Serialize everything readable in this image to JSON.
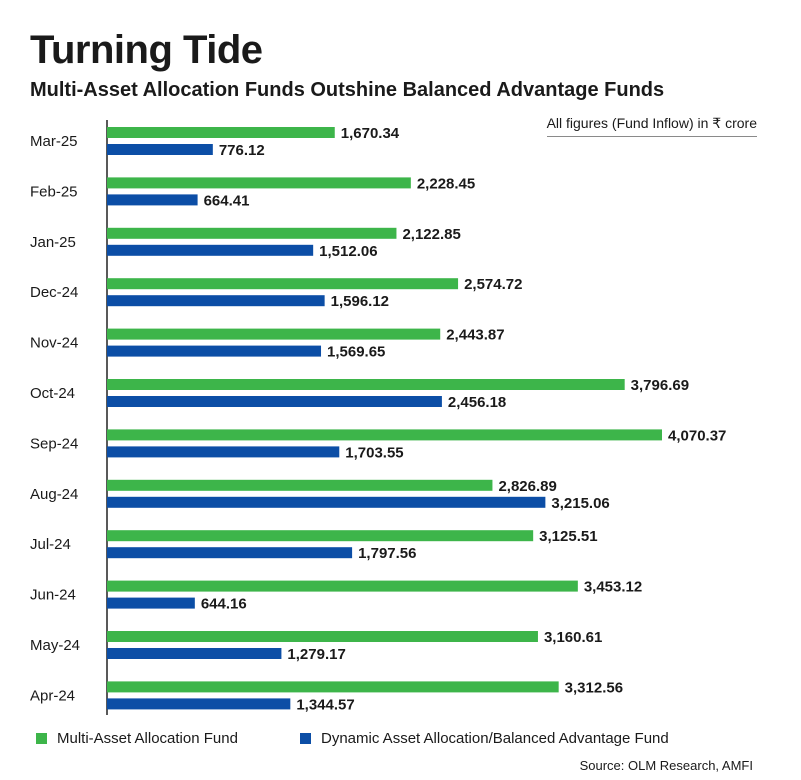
{
  "title": "Turning Tide",
  "subtitle": "Multi-Asset Allocation Funds Outshine Balanced Advantage Funds",
  "unit_note": "All figures (Fund Inflow) in ₹ crore",
  "source": "Source: OLM Research, AMFI",
  "colors": {
    "multi_asset": "#3db54a",
    "dynamic_asset": "#0c4ea6",
    "axis": "#222222"
  },
  "chart_data": {
    "type": "bar",
    "orientation": "horizontal",
    "title": "Turning Tide",
    "subtitle": "Multi-Asset Allocation Funds Outshine Balanced Advantage Funds",
    "categories": [
      "Mar-25",
      "Feb-25",
      "Jan-25",
      "Dec-24",
      "Nov-24",
      "Oct-24",
      "Sep-24",
      "Aug-24",
      "Jul-24",
      "Jun-24",
      "May-24",
      "Apr-24"
    ],
    "series": [
      {
        "name": "Multi-Asset Allocation Fund",
        "values": [
          1670.34,
          2228.45,
          2122.85,
          2574.72,
          2443.87,
          3796.69,
          4070.37,
          2826.89,
          3125.51,
          3453.12,
          3160.61,
          3312.56
        ],
        "labels": [
          "1,670.34",
          "2,228.45",
          "2,122.85",
          "2,574.72",
          "2,443.87",
          "3,796.69",
          "4,070.37",
          "2,826.89",
          "3,125.51",
          "3,453.12",
          "3,160.61",
          "3,312.56"
        ]
      },
      {
        "name": "Dynamic Asset Allocation/Balanced Advantage Fund",
        "values": [
          776.12,
          664.41,
          1512.06,
          1596.12,
          1569.65,
          2456.18,
          1703.55,
          3215.06,
          1797.56,
          644.16,
          1279.17,
          1344.57
        ],
        "labels": [
          "776.12",
          "664.41",
          "1,512.06",
          "1,596.12",
          "1,569.65",
          "2,456.18",
          "1,703.55",
          "3,215.06",
          "1,797.56",
          "644.16",
          "1,279.17",
          "1,344.57"
        ]
      }
    ],
    "xlim": [
      0,
      4070.37
    ],
    "grid": false,
    "legend_position": "bottom"
  }
}
